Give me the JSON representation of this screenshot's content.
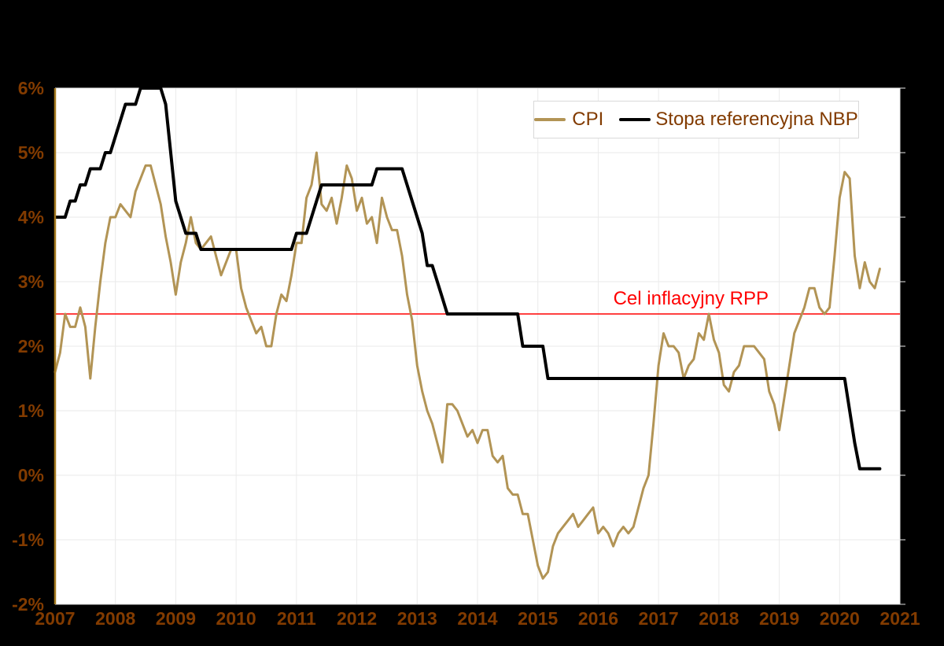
{
  "chart_data": {
    "type": "line",
    "title": "",
    "x": {
      "start_year": 2007,
      "start_month": 1,
      "frequency": "monthly",
      "end_year": 2020,
      "end_month": 9
    },
    "x_axis": {
      "range": [
        2007,
        2021
      ],
      "tick_labels": [
        "2007",
        "2008",
        "2009",
        "2010",
        "2011",
        "2012",
        "2013",
        "2014",
        "2015",
        "2016",
        "2017",
        "2018",
        "2019",
        "2020",
        "2021"
      ],
      "grid": true
    },
    "y_axis": {
      "range": [
        -2,
        6
      ],
      "unit": "%",
      "tick_values": [
        6,
        5,
        4,
        3,
        2,
        1,
        0,
        -1,
        -2
      ],
      "tick_labels": [
        "6%",
        "5%",
        "4%",
        "3%",
        "2%",
        "1%",
        "0%",
        "-1%",
        "-2%"
      ],
      "grid": true
    },
    "series": [
      {
        "name": "CPI",
        "color": "#B29455",
        "stroke_width": 3,
        "unit": "%",
        "values": [
          1.6,
          1.9,
          2.5,
          2.3,
          2.3,
          2.6,
          2.3,
          1.5,
          2.3,
          3.0,
          3.6,
          4.0,
          4.0,
          4.2,
          4.1,
          4.0,
          4.4,
          4.6,
          4.8,
          4.8,
          4.5,
          4.2,
          3.7,
          3.3,
          2.8,
          3.3,
          3.6,
          4.0,
          3.6,
          3.5,
          3.6,
          3.7,
          3.4,
          3.1,
          3.3,
          3.5,
          3.5,
          2.9,
          2.6,
          2.4,
          2.2,
          2.3,
          2.0,
          2.0,
          2.5,
          2.8,
          2.7,
          3.1,
          3.6,
          3.6,
          4.3,
          4.5,
          5.0,
          4.2,
          4.1,
          4.3,
          3.9,
          4.3,
          4.8,
          4.6,
          4.1,
          4.3,
          3.9,
          4.0,
          3.6,
          4.3,
          4.0,
          3.8,
          3.8,
          3.4,
          2.8,
          2.4,
          1.7,
          1.3,
          1.0,
          0.8,
          0.5,
          0.2,
          1.1,
          1.1,
          1.0,
          0.8,
          0.6,
          0.7,
          0.5,
          0.7,
          0.7,
          0.3,
          0.2,
          0.3,
          -0.2,
          -0.3,
          -0.3,
          -0.6,
          -0.6,
          -1.0,
          -1.4,
          -1.6,
          -1.5,
          -1.1,
          -0.9,
          -0.8,
          -0.7,
          -0.6,
          -0.8,
          -0.7,
          -0.6,
          -0.5,
          -0.9,
          -0.8,
          -0.9,
          -1.1,
          -0.9,
          -0.8,
          -0.9,
          -0.8,
          -0.5,
          -0.2,
          0.0,
          0.8,
          1.7,
          2.2,
          2.0,
          2.0,
          1.9,
          1.5,
          1.7,
          1.8,
          2.2,
          2.1,
          2.5,
          2.1,
          1.9,
          1.4,
          1.3,
          1.6,
          1.7,
          2.0,
          2.0,
          2.0,
          1.9,
          1.8,
          1.3,
          1.1,
          0.7,
          1.2,
          1.7,
          2.2,
          2.4,
          2.6,
          2.9,
          2.9,
          2.6,
          2.5,
          2.6,
          3.4,
          4.3,
          4.7,
          4.6,
          3.4,
          2.9,
          3.3,
          3.0,
          2.9,
          3.2
        ]
      },
      {
        "name": "Stopa referencyjna NBP",
        "color": "#000000",
        "stroke_width": 4,
        "unit": "%",
        "values": [
          4.0,
          4.0,
          4.0,
          4.25,
          4.25,
          4.5,
          4.5,
          4.75,
          4.75,
          4.75,
          5.0,
          5.0,
          5.25,
          5.5,
          5.75,
          5.75,
          5.75,
          6.0,
          6.0,
          6.0,
          6.0,
          6.0,
          5.75,
          5.0,
          4.25,
          4.0,
          3.75,
          3.75,
          3.75,
          3.5,
          3.5,
          3.5,
          3.5,
          3.5,
          3.5,
          3.5,
          3.5,
          3.5,
          3.5,
          3.5,
          3.5,
          3.5,
          3.5,
          3.5,
          3.5,
          3.5,
          3.5,
          3.5,
          3.75,
          3.75,
          3.75,
          4.0,
          4.25,
          4.5,
          4.5,
          4.5,
          4.5,
          4.5,
          4.5,
          4.5,
          4.5,
          4.5,
          4.5,
          4.5,
          4.75,
          4.75,
          4.75,
          4.75,
          4.75,
          4.75,
          4.5,
          4.25,
          4.0,
          3.75,
          3.25,
          3.25,
          3.0,
          2.75,
          2.5,
          2.5,
          2.5,
          2.5,
          2.5,
          2.5,
          2.5,
          2.5,
          2.5,
          2.5,
          2.5,
          2.5,
          2.5,
          2.5,
          2.5,
          2.0,
          2.0,
          2.0,
          2.0,
          2.0,
          1.5,
          1.5,
          1.5,
          1.5,
          1.5,
          1.5,
          1.5,
          1.5,
          1.5,
          1.5,
          1.5,
          1.5,
          1.5,
          1.5,
          1.5,
          1.5,
          1.5,
          1.5,
          1.5,
          1.5,
          1.5,
          1.5,
          1.5,
          1.5,
          1.5,
          1.5,
          1.5,
          1.5,
          1.5,
          1.5,
          1.5,
          1.5,
          1.5,
          1.5,
          1.5,
          1.5,
          1.5,
          1.5,
          1.5,
          1.5,
          1.5,
          1.5,
          1.5,
          1.5,
          1.5,
          1.5,
          1.5,
          1.5,
          1.5,
          1.5,
          1.5,
          1.5,
          1.5,
          1.5,
          1.5,
          1.5,
          1.5,
          1.5,
          1.5,
          1.5,
          1.0,
          0.5,
          0.1,
          0.1,
          0.1,
          0.1,
          0.1
        ]
      }
    ],
    "target_line": {
      "value": 2.5,
      "label": "Cel inflacyjny RPP",
      "color": "#FF0000"
    },
    "legend_position": "top-right-inside",
    "colors": {
      "page_bg": "#000000",
      "plot_bg": "#FFFFFF",
      "gridline": "#EAEAEA",
      "bottom_axis": "#D9D9D9",
      "left_axis": "#A3781E",
      "tick_label": "#823B00",
      "legend_text": "#823B00",
      "legend_border": "#D9D9D9"
    }
  }
}
